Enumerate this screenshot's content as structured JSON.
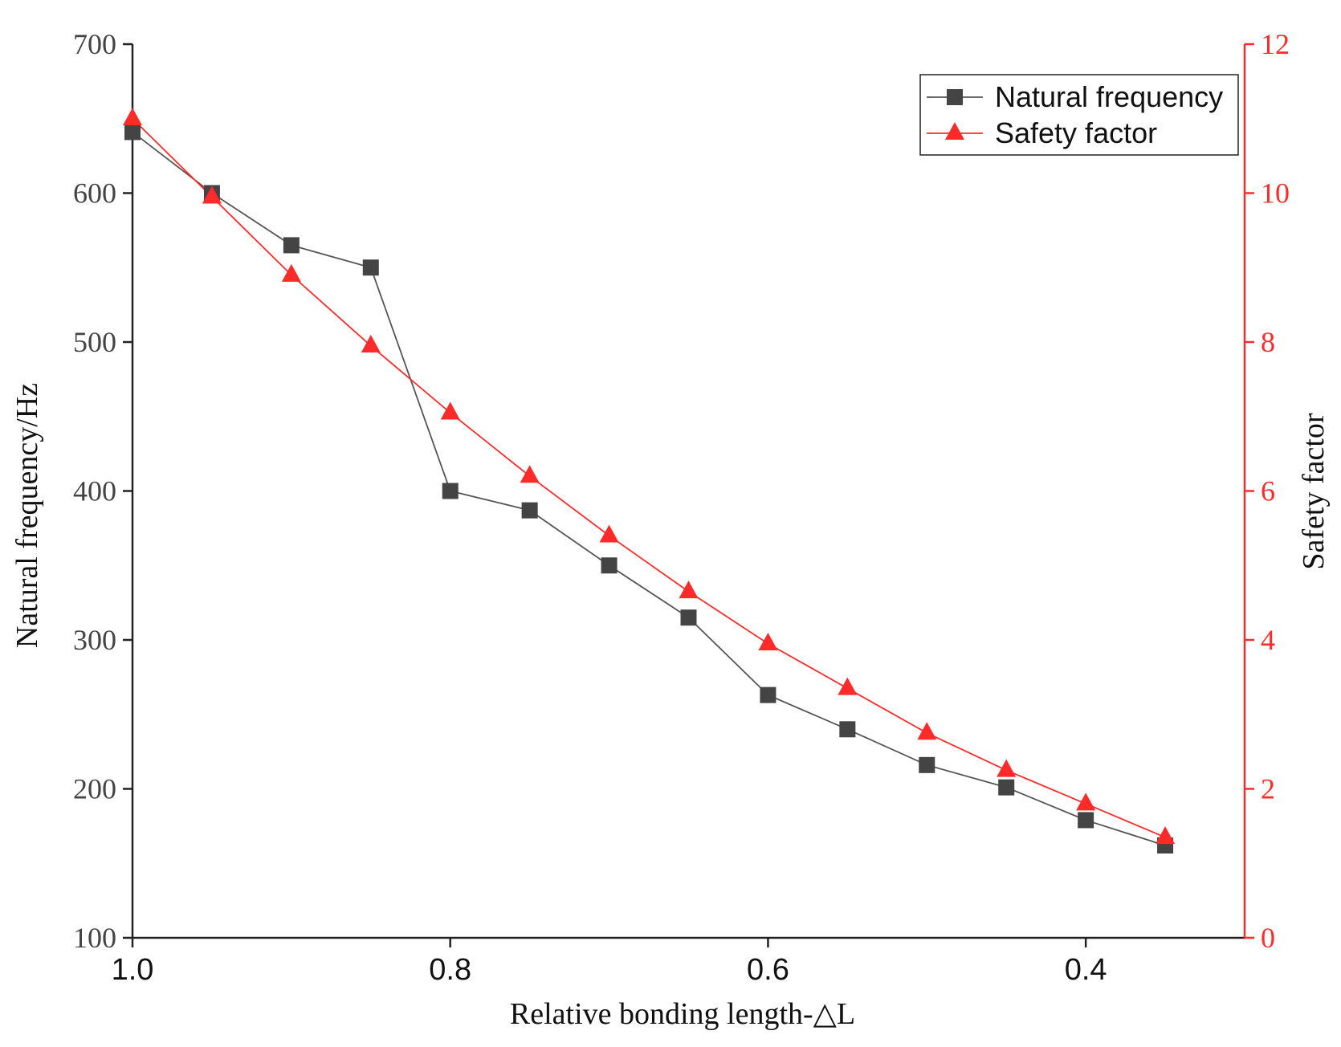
{
  "chart_data": {
    "type": "line",
    "title": "",
    "xlabel": "Relative bonding length-△L",
    "ylabel": "Natural frequency/Hz",
    "y2label": "Safety factor",
    "xlim": [
      1.0,
      0.3
    ],
    "ylim": [
      100,
      700
    ],
    "y2lim": [
      0,
      12
    ],
    "xticks": [
      1.0,
      0.8,
      0.6,
      0.4
    ],
    "xtick_labels": [
      "1.0",
      "0.8",
      "0.6",
      "0.4"
    ],
    "yticks": [
      100,
      200,
      300,
      400,
      500,
      600,
      700
    ],
    "ytick_labels": [
      "100",
      "200",
      "300",
      "400",
      "500",
      "600",
      "700"
    ],
    "y2ticks": [
      0,
      2,
      4,
      6,
      8,
      10,
      12
    ],
    "y2tick_labels": [
      "0",
      "2",
      "4",
      "6",
      "8",
      "10",
      "12"
    ],
    "grid": false,
    "legend_position": "top-right",
    "x": [
      1.0,
      0.95,
      0.9,
      0.85,
      0.8,
      0.75,
      0.7,
      0.65,
      0.6,
      0.55,
      0.5,
      0.45,
      0.4,
      0.35
    ],
    "series": [
      {
        "name": "Natural frequency",
        "axis": "left",
        "marker": "square",
        "color": "#444444",
        "values": [
          641,
          600,
          565,
          550,
          400,
          387,
          350,
          315,
          263,
          240,
          216,
          201,
          179,
          162
        ]
      },
      {
        "name": "Safety factor",
        "axis": "right",
        "marker": "triangle",
        "color": "#ff2a2a",
        "values": [
          11.0,
          9.95,
          8.9,
          7.95,
          7.05,
          6.2,
          5.4,
          4.65,
          3.95,
          3.35,
          2.75,
          2.25,
          1.8,
          1.35
        ]
      }
    ]
  }
}
